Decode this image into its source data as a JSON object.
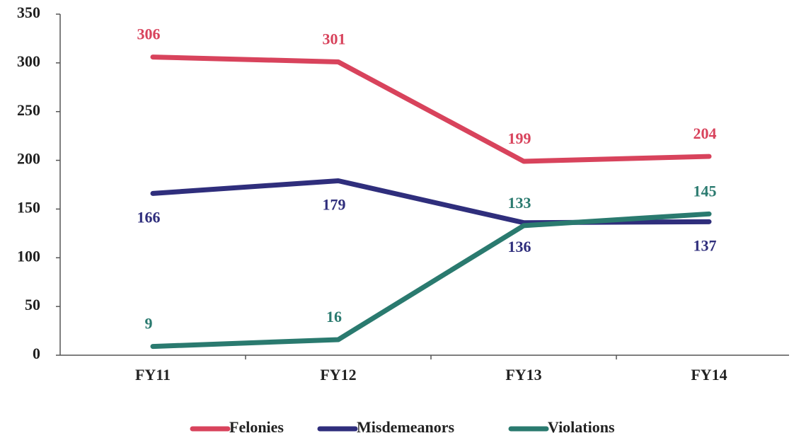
{
  "chart_data": {
    "type": "line",
    "categories": [
      "FY11",
      "FY12",
      "FY13",
      "FY14"
    ],
    "series": [
      {
        "name": "Felonies",
        "color": "#d8435c",
        "values": [
          306,
          301,
          199,
          204
        ]
      },
      {
        "name": "Misdemeanors",
        "color": "#2f2e7c",
        "values": [
          166,
          179,
          136,
          137
        ]
      },
      {
        "name": "Violations",
        "color": "#2a7a6f",
        "values": [
          9,
          16,
          133,
          145
        ]
      }
    ],
    "ylim": [
      0,
      350
    ],
    "yticks": [
      0,
      50,
      100,
      150,
      200,
      250,
      300,
      350
    ],
    "grid": false,
    "legend": "bottom"
  }
}
